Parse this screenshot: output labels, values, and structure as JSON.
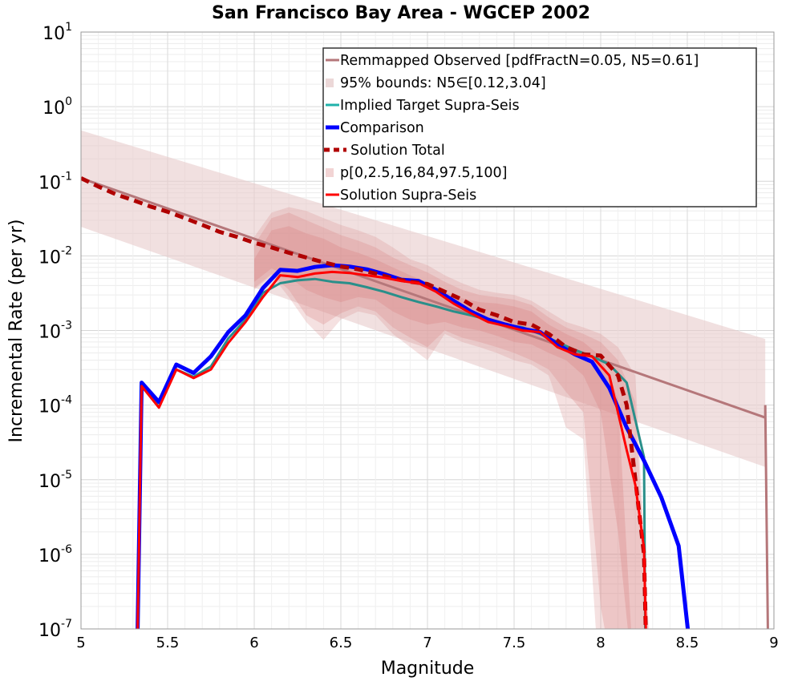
{
  "chart_data": {
    "type": "line",
    "title": "San Francisco Bay Area - WGCEP 2002",
    "xlabel": "Magnitude",
    "ylabel": "Incremental Rate (per yr)",
    "xlim": [
      5,
      9
    ],
    "ylim_log10": [
      -7,
      1
    ],
    "y_scale": "log",
    "grid": true,
    "legend_position": "top-right",
    "x_ticks": [
      "5",
      "5.5",
      "6",
      "6.5",
      "7",
      "7.5",
      "8",
      "8.5",
      "9"
    ],
    "y_ticks": [
      {
        "base": "10",
        "exp": "1"
      },
      {
        "base": "10",
        "exp": "0"
      },
      {
        "base": "10",
        "exp": "-1"
      },
      {
        "base": "10",
        "exp": "-2"
      },
      {
        "base": "10",
        "exp": "-3"
      },
      {
        "base": "10",
        "exp": "-4"
      },
      {
        "base": "10",
        "exp": "-5"
      },
      {
        "base": "10",
        "exp": "-6"
      },
      {
        "base": "10",
        "exp": "-7"
      }
    ],
    "legend": [
      {
        "label": "Remmapped Observed [pdfFractN=0.05, N5=0.61]",
        "color": "#b5777a",
        "style": "line"
      },
      {
        "label": "95% bounds: N5∈[0.12,3.04]",
        "color": "#ecd8d8",
        "style": "box"
      },
      {
        "label": "Implied Target Supra-Seis",
        "color": "#20b2aa",
        "style": "line"
      },
      {
        "label": "Comparison",
        "color": "#0000ff",
        "style": "thick"
      },
      {
        "label": "Solution Total",
        "color": "#b00000",
        "style": "dashed"
      },
      {
        "label": "p[0,2.5,16,84,97.5,100]",
        "color": "#f2d4d4",
        "style": "box"
      },
      {
        "label": "Solution Supra-Seis",
        "color": "#ff0000",
        "style": "line"
      }
    ],
    "bounds_95": {
      "x": [
        5.0,
        8.95
      ],
      "lower": [
        0.0245,
        1.48e-05
      ],
      "upper": [
        0.48,
        0.00077
      ]
    },
    "remapped_observed": {
      "x": [
        5.0,
        8.95,
        8.95,
        8.97
      ],
      "y": [
        0.11,
        6.8e-05,
        0.0001,
        1e-08
      ]
    },
    "solution_percentiles": {
      "x": [
        6.0,
        6.1,
        6.2,
        6.3,
        6.4,
        6.5,
        6.6,
        6.7,
        6.8,
        6.9,
        7.0,
        7.1,
        7.2,
        7.3,
        7.4,
        7.5,
        7.6,
        7.7,
        7.8,
        7.9,
        8.0,
        8.1,
        8.2,
        8.3
      ],
      "p0": [
        0.0035,
        0.0055,
        0.0028,
        0.0013,
        0.00075,
        0.0014,
        0.0018,
        0.0016,
        0.0009,
        0.0006,
        0.0004,
        0.0009,
        0.0007,
        0.0006,
        0.0005,
        0.0004,
        0.00035,
        0.00025,
        5e-05,
        3.5e-05,
        1e-08,
        1e-08,
        1e-08,
        1e-08
      ],
      "p2_5": [
        0.0037,
        0.0057,
        0.0035,
        0.0016,
        0.0012,
        0.0017,
        0.0021,
        0.0018,
        0.0011,
        0.0008,
        0.0006,
        0.001,
        0.0008,
        0.0007,
        0.0006,
        0.0005,
        0.0004,
        0.0003,
        0.00015,
        8e-05,
        2e-07,
        1e-08,
        1e-08,
        1e-08
      ],
      "p16": [
        0.0045,
        0.0068,
        0.0052,
        0.0035,
        0.0028,
        0.0024,
        0.0028,
        0.0026,
        0.0018,
        0.0014,
        0.0012,
        0.0013,
        0.0011,
        0.001,
        0.00085,
        0.0007,
        0.00065,
        0.0005,
        0.0004,
        0.00025,
        8e-05,
        2e-06,
        1e-08,
        1e-08
      ],
      "p84": [
        0.009,
        0.022,
        0.025,
        0.02,
        0.017,
        0.013,
        0.011,
        0.009,
        0.007,
        0.0055,
        0.0045,
        0.0033,
        0.0027,
        0.0024,
        0.0023,
        0.0021,
        0.0018,
        0.0012,
        0.0009,
        0.0007,
        0.00045,
        0.00012,
        1e-08,
        1e-08
      ],
      "p97_5": [
        0.014,
        0.032,
        0.038,
        0.03,
        0.024,
        0.019,
        0.016,
        0.013,
        0.0095,
        0.0075,
        0.006,
        0.0045,
        0.0035,
        0.003,
        0.0028,
        0.0026,
        0.0022,
        0.0015,
        0.0011,
        0.0009,
        0.0007,
        0.0004,
        0.00011,
        1e-08
      ],
      "p100": [
        0.018,
        0.038,
        0.045,
        0.04,
        0.032,
        0.026,
        0.022,
        0.018,
        0.013,
        0.009,
        0.0075,
        0.0055,
        0.0043,
        0.0035,
        0.0032,
        0.003,
        0.0025,
        0.0018,
        0.0013,
        0.0011,
        0.0009,
        0.0006,
        0.00025,
        1e-08
      ]
    },
    "series": [
      {
        "name": "Implied Target Supra-Seis",
        "color": "#2a8f8a",
        "x": [
          5.32,
          5.35,
          5.45,
          5.55,
          5.65,
          5.75,
          5.85,
          5.95,
          6.05,
          6.15,
          6.25,
          6.35,
          6.45,
          6.55,
          6.65,
          6.75,
          6.85,
          6.95,
          7.05,
          7.15,
          7.25,
          7.35,
          7.45,
          7.55,
          7.65,
          7.75,
          7.85,
          7.95,
          8.05,
          8.15,
          8.25,
          8.26
        ],
        "y": [
          1e-08,
          0.00018,
          9.5e-05,
          0.0003,
          0.00024,
          0.00033,
          0.00078,
          0.0014,
          0.0032,
          0.0043,
          0.0047,
          0.0049,
          0.0045,
          0.0043,
          0.0038,
          0.0033,
          0.0028,
          0.0024,
          0.0021,
          0.0018,
          0.0016,
          0.0014,
          0.0012,
          0.0011,
          0.0009,
          0.0007,
          0.00055,
          0.00045,
          0.00035,
          0.0002,
          2e-05,
          1e-08
        ]
      },
      {
        "name": "Comparison",
        "color": "#0000ff",
        "x": [
          5.32,
          5.35,
          5.45,
          5.55,
          5.65,
          5.75,
          5.85,
          5.95,
          6.05,
          6.15,
          6.25,
          6.35,
          6.45,
          6.55,
          6.65,
          6.75,
          6.85,
          6.95,
          7.05,
          7.15,
          7.25,
          7.35,
          7.45,
          7.55,
          7.65,
          7.75,
          7.85,
          7.95,
          8.05,
          8.15,
          8.25,
          8.35,
          8.45,
          8.55
        ],
        "y": [
          1e-08,
          0.0002,
          0.00011,
          0.00035,
          0.00027,
          0.00045,
          0.00095,
          0.0016,
          0.0037,
          0.0065,
          0.0063,
          0.0071,
          0.0075,
          0.0072,
          0.0066,
          0.0057,
          0.0048,
          0.0046,
          0.0035,
          0.0025,
          0.0018,
          0.0014,
          0.0012,
          0.00105,
          0.00095,
          0.00065,
          0.00048,
          0.00038,
          0.00017,
          5e-05,
          1.8e-05,
          5.8e-06,
          1.3e-06,
          1e-08
        ]
      },
      {
        "name": "Solution Total",
        "color": "#b00000",
        "dashed": true,
        "x": [
          5.0,
          5.1,
          5.2,
          5.3,
          5.4,
          5.5,
          5.6,
          5.7,
          5.8,
          5.9,
          6.0,
          6.1,
          6.2,
          6.3,
          6.4,
          6.5,
          6.6,
          6.7,
          6.8,
          6.9,
          7.0,
          7.1,
          7.2,
          7.3,
          7.4,
          7.5,
          7.6,
          7.7,
          7.8,
          7.9,
          8.0,
          8.1,
          8.15,
          8.2,
          8.25,
          8.27
        ],
        "y": [
          0.11,
          0.085,
          0.067,
          0.056,
          0.046,
          0.039,
          0.032,
          0.026,
          0.021,
          0.018,
          0.015,
          0.013,
          0.011,
          0.0095,
          0.0082,
          0.0072,
          0.0066,
          0.0058,
          0.005,
          0.0045,
          0.0042,
          0.0033,
          0.0026,
          0.0019,
          0.0016,
          0.0013,
          0.0012,
          0.0009,
          0.0006,
          0.00048,
          0.00046,
          0.00025,
          0.0001,
          1e-05,
          1e-06,
          1e-08
        ]
      },
      {
        "name": "Solution Supra-Seis",
        "color": "#ff0000",
        "x": [
          5.32,
          5.35,
          5.45,
          5.55,
          5.65,
          5.75,
          5.85,
          5.95,
          6.05,
          6.15,
          6.25,
          6.35,
          6.45,
          6.55,
          6.65,
          6.75,
          6.85,
          6.95,
          7.05,
          7.15,
          7.25,
          7.35,
          7.45,
          7.55,
          7.65,
          7.75,
          7.85,
          7.95,
          8.05,
          8.15,
          8.2,
          8.25,
          8.27
        ],
        "y": [
          1e-08,
          0.00018,
          9.25e-05,
          0.0003,
          0.00023,
          0.0003,
          0.00068,
          0.0013,
          0.0028,
          0.0055,
          0.0052,
          0.0058,
          0.0061,
          0.0059,
          0.0055,
          0.0051,
          0.0046,
          0.0043,
          0.0033,
          0.0023,
          0.0017,
          0.0013,
          0.00115,
          0.001,
          0.00095,
          0.0006,
          0.00048,
          0.00045,
          0.00025,
          2.5e-05,
          8.5e-06,
          1.2e-06,
          1e-08
        ]
      }
    ]
  }
}
